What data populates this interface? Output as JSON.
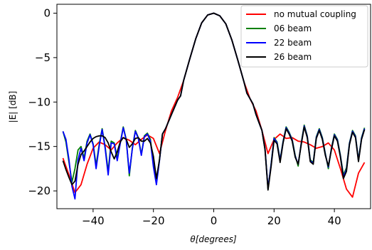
{
  "chart_data": {
    "type": "line",
    "title": "",
    "xlabel": "θ[degrees]",
    "ylabel": "|E| [dB]",
    "xlim": [
      -52,
      52
    ],
    "ylim": [
      -22,
      1
    ],
    "xticks": [
      -40,
      -20,
      0,
      20,
      40
    ],
    "yticks": [
      0,
      -5,
      -10,
      -15,
      -20
    ],
    "grid": false,
    "legend_position": "top-right",
    "series": [
      {
        "name": "no mutual coupling",
        "color": "#ff0000",
        "x": [
          -50,
          -48,
          -46,
          -44,
          -42,
          -40,
          -38,
          -36,
          -34,
          -32,
          -30,
          -28,
          -26,
          -24,
          -22,
          -20,
          -18,
          -16,
          -14,
          -12,
          -10,
          -8,
          -6,
          -4,
          -2,
          0,
          2,
          4,
          6,
          8,
          10,
          12,
          14,
          16,
          18,
          20,
          22,
          24,
          26,
          28,
          30,
          32,
          34,
          36,
          38,
          40,
          42,
          44,
          46,
          48,
          50
        ],
        "values": [
          -16.3,
          -18.2,
          -20.2,
          -19.3,
          -17.0,
          -15.2,
          -14.5,
          -14.8,
          -15.4,
          -14.6,
          -14.0,
          -14.3,
          -14.8,
          -14.2,
          -13.7,
          -14.1,
          -15.8,
          -13.2,
          -11.0,
          -9.5,
          -7.6,
          -5.2,
          -2.9,
          -1.1,
          -0.2,
          0.0,
          -0.3,
          -1.2,
          -3.0,
          -5.3,
          -7.7,
          -9.6,
          -11.0,
          -13.2,
          -15.8,
          -14.2,
          -13.6,
          -14.1,
          -14.0,
          -14.4,
          -14.5,
          -14.8,
          -15.2,
          -15.0,
          -14.6,
          -15.4,
          -17.5,
          -19.8,
          -20.7,
          -18.0,
          -16.8
        ]
      },
      {
        "name": "06 beam",
        "color": "#008000",
        "x": [
          -50,
          -49,
          -48,
          -47,
          -46,
          -45,
          -44,
          -43,
          -42,
          -41,
          -40,
          -39,
          -38,
          -37,
          -36,
          -35,
          -34,
          -33,
          -32,
          -31,
          -30,
          -29,
          -28,
          -27,
          -26,
          -25,
          -24,
          -23,
          -22,
          -21,
          -20,
          -19,
          -18,
          -17,
          -16,
          -15,
          -14,
          -13,
          -12,
          -11,
          -10,
          -8,
          -6,
          -4,
          -2,
          0,
          2,
          4,
          6,
          8,
          10,
          11,
          12,
          13,
          14,
          15,
          16,
          17,
          18,
          19,
          20,
          21,
          22,
          23,
          24,
          25,
          26,
          27,
          28,
          29,
          30,
          31,
          32,
          33,
          34,
          35,
          36,
          37,
          38,
          39,
          40,
          41,
          42,
          43,
          44,
          45,
          46,
          47,
          48,
          49,
          50
        ],
        "values": [
          -13.3,
          -14.5,
          -16.8,
          -19.0,
          -17.5,
          -15.4,
          -15.0,
          -16.3,
          -14.4,
          -13.6,
          -14.7,
          -17.1,
          -14.8,
          -13.0,
          -15.0,
          -17.8,
          -14.4,
          -14.6,
          -16.3,
          -14.6,
          -12.8,
          -14.2,
          -18.3,
          -15.2,
          -13.2,
          -14.0,
          -15.9,
          -13.8,
          -13.5,
          -14.2,
          -17.0,
          -19.0,
          -16.5,
          -13.6,
          -13.0,
          -12.2,
          -11.4,
          -10.6,
          -9.8,
          -9.3,
          -7.6,
          -5.2,
          -2.9,
          -1.1,
          -0.2,
          0.0,
          -0.3,
          -1.2,
          -3.0,
          -5.3,
          -7.7,
          -9.0,
          -9.6,
          -10.2,
          -11.4,
          -12.3,
          -13.2,
          -15.2,
          -19.8,
          -17.0,
          -14.0,
          -14.5,
          -16.5,
          -14.4,
          -12.8,
          -13.4,
          -14.2,
          -16.0,
          -17.2,
          -14.6,
          -12.6,
          -13.8,
          -16.5,
          -16.8,
          -13.9,
          -13.0,
          -14.0,
          -15.8,
          -17.5,
          -15.2,
          -13.6,
          -14.2,
          -16.0,
          -18.2,
          -17.4,
          -14.6,
          -13.2,
          -13.8,
          -16.5,
          -14.0,
          -12.9
        ]
      },
      {
        "name": "22 beam",
        "color": "#0000ff",
        "x": [
          -50,
          -49,
          -48,
          -47,
          -46,
          -45,
          -44,
          -43,
          -42,
          -41,
          -40,
          -39,
          -38,
          -37,
          -36,
          -35,
          -34,
          -33,
          -32,
          -31,
          -30,
          -29,
          -28,
          -27,
          -26,
          -25,
          -24,
          -23,
          -22,
          -21,
          -20,
          -19,
          -18,
          -17,
          -16,
          -15,
          -14,
          -13,
          -12,
          -11,
          -10,
          -8,
          -6,
          -4,
          -2,
          0,
          2,
          4,
          6,
          8,
          10,
          11,
          12,
          13,
          14,
          15,
          16,
          17,
          18,
          19,
          20,
          21,
          22,
          23,
          24,
          25,
          26,
          27,
          28,
          29,
          30,
          31,
          32,
          33,
          34,
          35,
          36,
          37,
          38,
          39,
          40,
          41,
          42,
          43,
          44,
          45,
          46,
          47,
          48,
          49,
          50
        ],
        "values": [
          -13.3,
          -14.2,
          -16.5,
          -19.5,
          -20.9,
          -16.5,
          -15.2,
          -16.6,
          -14.6,
          -13.7,
          -14.8,
          -17.5,
          -15.0,
          -13.1,
          -15.2,
          -18.2,
          -14.6,
          -14.7,
          -16.6,
          -14.7,
          -12.9,
          -14.3,
          -18.0,
          -15.3,
          -13.3,
          -14.1,
          -16.0,
          -13.9,
          -13.6,
          -14.4,
          -17.3,
          -19.3,
          -16.6,
          -13.6,
          -13.0,
          -12.2,
          -11.4,
          -10.6,
          -9.8,
          -9.3,
          -7.6,
          -5.2,
          -2.9,
          -1.1,
          -0.2,
          0.0,
          -0.3,
          -1.2,
          -3.0,
          -5.3,
          -7.7,
          -9.0,
          -9.6,
          -10.2,
          -11.4,
          -12.3,
          -13.2,
          -15.3,
          -19.7,
          -17.1,
          -14.1,
          -14.6,
          -16.6,
          -14.5,
          -12.9,
          -13.5,
          -14.3,
          -16.1,
          -17.0,
          -14.7,
          -12.7,
          -13.9,
          -16.6,
          -16.9,
          -14.0,
          -13.1,
          -14.1,
          -15.9,
          -17.3,
          -15.3,
          -13.7,
          -14.3,
          -16.1,
          -18.4,
          -17.6,
          -14.7,
          -13.3,
          -13.9,
          -16.6,
          -14.1,
          -13.0
        ]
      },
      {
        "name": "26 beam",
        "color": "#000000",
        "x": [
          -50,
          -49,
          -48,
          -47,
          -46,
          -45,
          -44,
          -43,
          -42,
          -41,
          -40,
          -39,
          -38,
          -37,
          -36,
          -35,
          -34,
          -33,
          -32,
          -31,
          -30,
          -29,
          -28,
          -27,
          -26,
          -25,
          -24,
          -23,
          -22,
          -21,
          -20,
          -19,
          -18,
          -17,
          -16,
          -15,
          -14,
          -13,
          -12,
          -11,
          -10,
          -8,
          -6,
          -4,
          -2,
          0,
          2,
          4,
          6,
          8,
          10,
          11,
          12,
          13,
          14,
          15,
          16,
          17,
          18,
          19,
          20,
          21,
          22,
          23,
          24,
          25,
          26,
          27,
          28,
          29,
          30,
          31,
          32,
          33,
          34,
          35,
          36,
          37,
          38,
          39,
          40,
          41,
          42,
          43,
          44,
          45,
          46,
          47,
          48,
          49,
          50
        ],
        "values": [
          -16.6,
          -17.6,
          -18.5,
          -19.3,
          -18.9,
          -17.0,
          -15.9,
          -15.5,
          -15.0,
          -14.5,
          -14.1,
          -13.9,
          -13.8,
          -13.8,
          -14.0,
          -14.6,
          -15.6,
          -16.4,
          -15.6,
          -14.5,
          -14.0,
          -14.2,
          -15.1,
          -14.7,
          -14.1,
          -14.0,
          -14.4,
          -14.4,
          -14.1,
          -14.6,
          -16.1,
          -18.6,
          -16.5,
          -13.6,
          -13.0,
          -12.2,
          -11.4,
          -10.6,
          -9.8,
          -9.3,
          -7.6,
          -5.2,
          -2.9,
          -1.1,
          -0.2,
          0.0,
          -0.3,
          -1.2,
          -3.0,
          -5.3,
          -7.7,
          -9.0,
          -9.6,
          -10.2,
          -11.4,
          -12.3,
          -13.2,
          -15.4,
          -19.9,
          -17.3,
          -14.3,
          -14.7,
          -16.8,
          -14.6,
          -13.0,
          -13.6,
          -14.4,
          -16.2,
          -17.0,
          -14.8,
          -12.8,
          -14.0,
          -16.7,
          -17.0,
          -14.1,
          -13.2,
          -14.2,
          -16.0,
          -17.2,
          -15.4,
          -13.8,
          -14.4,
          -16.2,
          -18.6,
          -17.8,
          -14.8,
          -13.4,
          -14.0,
          -16.7,
          -14.2,
          -13.1
        ]
      }
    ]
  }
}
